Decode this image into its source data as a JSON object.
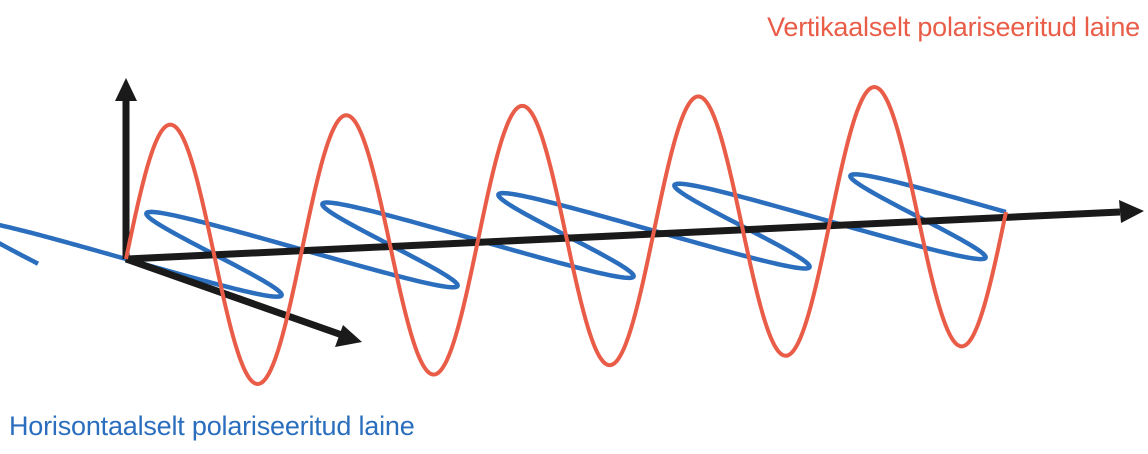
{
  "labels": {
    "vertical_wave": "Vertikaalselt polariseeritud laine",
    "horizontal_wave": "Horisontaalselt polariseeritud laine"
  },
  "colors": {
    "vertical_wave": "#e95d48",
    "horizontal_wave": "#2a6ebd",
    "axes": "#1a1a1a",
    "background": "#ffffff"
  },
  "wave_cycles": 5,
  "icons": {
    "axis_arrowheads": "arrow-icon"
  }
}
